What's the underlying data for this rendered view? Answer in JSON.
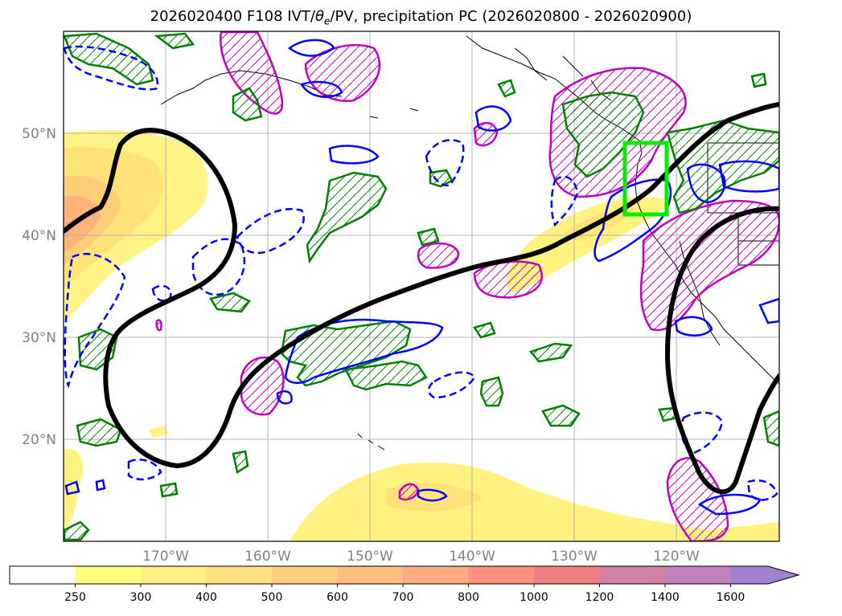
{
  "title": {
    "prefix": "2026020400 F108 IVT/",
    "theta": "θ",
    "sub": "e",
    "suffix": "/PV, precipitation PC (2026020800 - 2026020900)"
  },
  "map": {
    "lat_labels": [
      "50°N",
      "40°N",
      "30°N",
      "20°N"
    ],
    "lon_labels": [
      "170°W",
      "160°W",
      "150°W",
      "140°W",
      "130°W",
      "120°W"
    ],
    "extent": {
      "lon_min": -180,
      "lon_max": -110,
      "lat_min": 10,
      "lat_max": 60
    },
    "target_box": {
      "lon": [
        -125,
        -121
      ],
      "lat": [
        42,
        49
      ],
      "color": "#00ee00"
    }
  },
  "colorbar": {
    "ticks": [
      "250",
      "300",
      "400",
      "500",
      "600",
      "700",
      "800",
      "1000",
      "1200",
      "1400",
      "1600"
    ],
    "colors": [
      "#ffffff",
      "#ffff80",
      "#ffef80",
      "#ffdf80",
      "#ffcf80",
      "#ffbf80",
      "#ffaa80",
      "#ff9080",
      "#f08080",
      "#d080a0",
      "#c080c0",
      "#a080d0"
    ],
    "extend": "max"
  },
  "legend_colors": {
    "ivt_fill": "#ffe066",
    "pv_contour": "#000000",
    "pos_precip": "#008000",
    "neg_precip": "#0000ff",
    "theta_e": "#c000c0"
  }
}
